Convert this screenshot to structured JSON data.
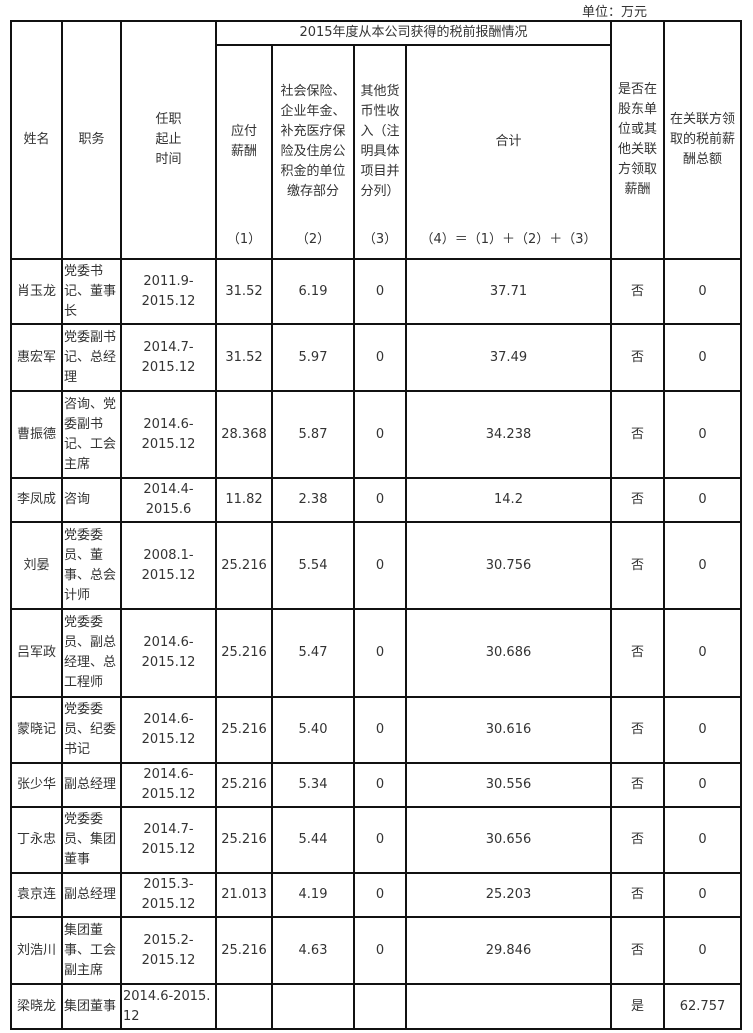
{
  "unit_label": "单位：万元",
  "header": {
    "name": "姓名",
    "position": "职务",
    "term": "任职\n起止\n时间",
    "group": "2015年度从本公司获得的税前报酬情况",
    "salary": "应付\n薪酬",
    "insurance": "社会保险、企业年金、补充医疗保险及住房公积金的单位缴存部分",
    "other": "其他货币性收入（注明具体项目并分列）",
    "total": "合计",
    "salary_no": "（1）",
    "insurance_no": "（2）",
    "other_no": "（3）",
    "total_no": "（4）＝（1）＋（2）＋（3）",
    "shareholder": "是否在股东单位或其他关联方领取薪酬",
    "related_total": "在关联方领取的税前薪酬总额"
  },
  "rows": [
    {
      "name": "肖玉龙",
      "position": "党委书记、董事长",
      "term": "2011.9-2015.12",
      "salary": "31.52",
      "insurance": "6.19",
      "other": "0",
      "total": "37.71",
      "shareholder": "否",
      "related": "0"
    },
    {
      "name": "惠宏军",
      "position": "党委副书记、总经理",
      "term": "2014.7-2015.12",
      "salary": "31.52",
      "insurance": "5.97",
      "other": "0",
      "total": "37.49",
      "shareholder": "否",
      "related": "0"
    },
    {
      "name": "曹振德",
      "position": "咨询、党委副书记、工会主席",
      "term": "2014.6-2015.12",
      "salary": "28.368",
      "insurance": "5.87",
      "other": "0",
      "total": "34.238",
      "shareholder": "否",
      "related": "0"
    },
    {
      "name": "李凤成",
      "position": "咨询",
      "term": "2014.4-2015.6",
      "salary": "11.82",
      "insurance": "2.38",
      "other": "0",
      "total": "14.2",
      "shareholder": "否",
      "related": "0"
    },
    {
      "name": "刘晏",
      "position": "党委委员、董事、总会计师",
      "term": "2008.1-2015.12",
      "salary": "25.216",
      "insurance": "5.54",
      "other": "0",
      "total": "30.756",
      "shareholder": "否",
      "related": "0"
    },
    {
      "name": "吕军政",
      "position": "党委委员、副总经理、总工程师",
      "term": "2014.6-2015.12",
      "salary": "25.216",
      "insurance": "5.47",
      "other": "0",
      "total": "30.686",
      "shareholder": "否",
      "related": "0"
    },
    {
      "name": "蒙晓记",
      "position": "党委委员、纪委书记",
      "term": "2014.6-2015.12",
      "salary": "25.216",
      "insurance": "5.40",
      "other": "0",
      "total": "30.616",
      "shareholder": "否",
      "related": "0"
    },
    {
      "name": "张少华",
      "position": "副总经理",
      "term": "2014.6-2015.12",
      "salary": "25.216",
      "insurance": "5.34",
      "other": "0",
      "total": "30.556",
      "shareholder": "否",
      "related": "0"
    },
    {
      "name": "丁永忠",
      "position": "党委委员、集团董事",
      "term": "2014.7-2015.12",
      "salary": "25.216",
      "insurance": "5.44",
      "other": "0",
      "total": "30.656",
      "shareholder": "否",
      "related": "0"
    },
    {
      "name": "袁京连",
      "position": "副总经理",
      "term": "2015.3-2015.12",
      "salary": "21.013",
      "insurance": "4.19",
      "other": "0",
      "total": "25.203",
      "shareholder": "否",
      "related": "0"
    },
    {
      "name": "刘浩川",
      "position": "集团董事、工会副主席",
      "term": "2015.2-2015.12",
      "salary": "25.216",
      "insurance": "4.63",
      "other": "0",
      "total": "29.846",
      "shareholder": "否",
      "related": "0"
    },
    {
      "name": "梁晓龙",
      "position": "集团董事",
      "term": "2014.6-2015.12",
      "salary": "",
      "insurance": "",
      "other": "",
      "total": "",
      "shareholder": "是",
      "related": "62.757"
    }
  ]
}
